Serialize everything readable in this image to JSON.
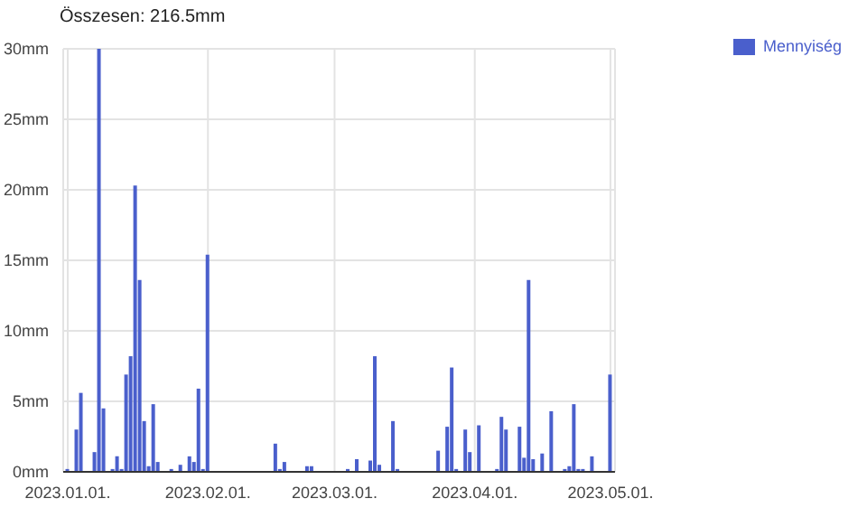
{
  "chart_data": {
    "type": "bar",
    "title": "Összesen: 216.5mm",
    "x": [
      "2023-01-01",
      "2023-01-03",
      "2023-01-04",
      "2023-01-07",
      "2023-01-08",
      "2023-01-09",
      "2023-01-11",
      "2023-01-12",
      "2023-01-13",
      "2023-01-14",
      "2023-01-15",
      "2023-01-16",
      "2023-01-17",
      "2023-01-18",
      "2023-01-19",
      "2023-01-20",
      "2023-01-21",
      "2023-01-24",
      "2023-01-26",
      "2023-01-28",
      "2023-01-29",
      "2023-01-30",
      "2023-01-31",
      "2023-02-01",
      "2023-02-16",
      "2023-02-17",
      "2023-02-18",
      "2023-02-23",
      "2023-02-24",
      "2023-03-04",
      "2023-03-06",
      "2023-03-09",
      "2023-03-10",
      "2023-03-11",
      "2023-03-14",
      "2023-03-15",
      "2023-03-24",
      "2023-03-26",
      "2023-03-27",
      "2023-03-28",
      "2023-03-30",
      "2023-03-31",
      "2023-04-02",
      "2023-04-06",
      "2023-04-07",
      "2023-04-08",
      "2023-04-11",
      "2023-04-12",
      "2023-04-13",
      "2023-04-14",
      "2023-04-16",
      "2023-04-18",
      "2023-04-21",
      "2023-04-22",
      "2023-04-23",
      "2023-04-24",
      "2023-04-25",
      "2023-04-27",
      "2023-05-01"
    ],
    "series": [
      {
        "name": "Mennyiség",
        "color": "#4a5fcc",
        "values": [
          0.2,
          3.0,
          5.6,
          1.4,
          30,
          4.5,
          0.2,
          1.1,
          0.2,
          6.9,
          8.2,
          20.3,
          13.6,
          3.6,
          0.4,
          4.8,
          0.7,
          0.2,
          0.5,
          1.1,
          0.7,
          5.9,
          0.2,
          15.4,
          2.0,
          0.2,
          0.7,
          0.4,
          0.4,
          0.2,
          0.9,
          0.8,
          8.2,
          0.5,
          3.6,
          0.2,
          1.5,
          3.2,
          7.4,
          0.2,
          3.0,
          1.4,
          3.3,
          0.2,
          3.9,
          3.0,
          3.2,
          1.0,
          13.6,
          0.9,
          1.3,
          4.3,
          0.2,
          0.4,
          4.8,
          0.2,
          0.2,
          1.1,
          6.9
        ]
      }
    ],
    "xlim": [
      "2022-12-31",
      "2023-05-02"
    ],
    "xticks": [
      {
        "value": "2023-01-01",
        "label": "2023.01.01."
      },
      {
        "value": "2023-02-01",
        "label": "2023.02.01."
      },
      {
        "value": "2023-03-01",
        "label": "2023.03.01."
      },
      {
        "value": "2023-04-01",
        "label": "2023.04.01."
      },
      {
        "value": "2023-05-01",
        "label": "2023.05.01."
      }
    ],
    "ylim": [
      0,
      30
    ],
    "yticks": [
      {
        "value": 0,
        "label": "0mm"
      },
      {
        "value": 5,
        "label": "5mm"
      },
      {
        "value": 10,
        "label": "10mm"
      },
      {
        "value": 15,
        "label": "15mm"
      },
      {
        "value": 20,
        "label": "20mm"
      },
      {
        "value": 25,
        "label": "25mm"
      },
      {
        "value": 30,
        "label": "30mm"
      }
    ],
    "grid": true,
    "legend": "top right"
  }
}
